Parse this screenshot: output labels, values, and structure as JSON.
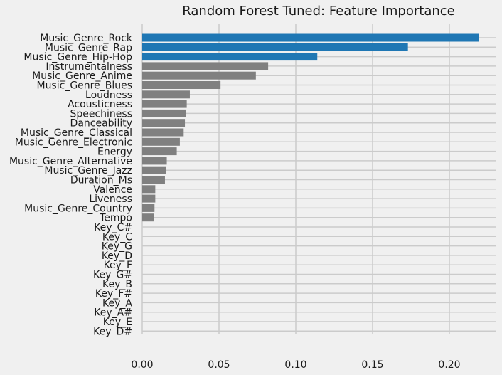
{
  "chart_data": {
    "type": "bar",
    "orientation": "horizontal",
    "title": "Random Forest Tuned: Feature Importance",
    "xlabel": "",
    "ylabel": "",
    "xlim": [
      0,
      0.23
    ],
    "xticks": [
      "0.00",
      "0.05",
      "0.10",
      "0.15",
      "0.20"
    ],
    "grid": true,
    "highlight_color": "#1f77b4",
    "base_color": "#808080",
    "background_color": "#f0f0f0",
    "grid_color": "#cbcbcb",
    "categories": [
      "Music_Genre_Rock",
      "Music_Genre_Rap",
      "Music_Genre_Hip-Hop",
      "Instrumentalness",
      "Music_Genre_Anime",
      "Music_Genre_Blues",
      "Loudness",
      "Acousticness",
      "Speechiness",
      "Danceability",
      "Music_Genre_Classical",
      "Music_Genre_Electronic",
      "Energy",
      "Music_Genre_Alternative",
      "Music_Genre_Jazz",
      "Duration_Ms",
      "Valence",
      "Liveness",
      "Music_Genre_Country",
      "Tempo",
      "Key_C#",
      "Key_C",
      "Key_G",
      "Key_D",
      "Key_F",
      "Key_G#",
      "Key_B",
      "Key_F#",
      "Key_A",
      "Key_A#",
      "Key_E",
      "Key_D#"
    ],
    "values": [
      0.219,
      0.173,
      0.114,
      0.082,
      0.074,
      0.051,
      0.031,
      0.029,
      0.0285,
      0.0278,
      0.027,
      0.0245,
      0.0225,
      0.016,
      0.0155,
      0.0148,
      0.0085,
      0.0085,
      0.008,
      0.0078,
      0,
      0,
      0,
      0,
      0,
      0,
      0,
      0,
      0,
      0,
      0,
      0
    ],
    "highlighted": [
      "Music_Genre_Rock",
      "Music_Genre_Rap",
      "Music_Genre_Hip-Hop"
    ]
  }
}
